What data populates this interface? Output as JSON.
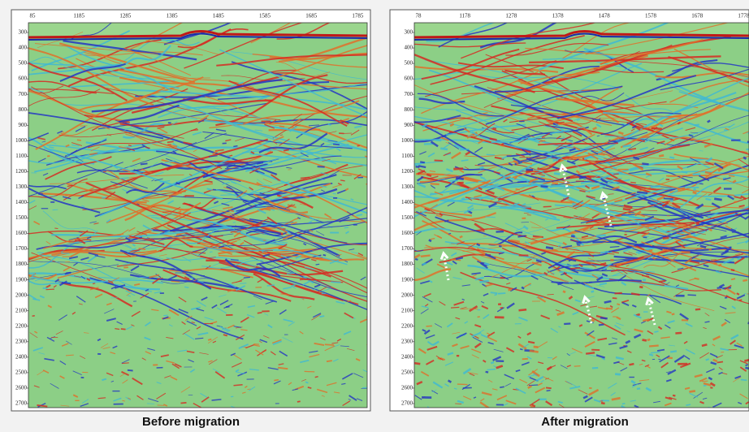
{
  "panels": [
    {
      "caption": "Before migration",
      "x_labels": [
        "85",
        "1185",
        "1285",
        "1385",
        "1485",
        "1585",
        "1685",
        "1785"
      ],
      "y_labels": [
        "300",
        "400",
        "500",
        "600",
        "700",
        "800",
        "900",
        "1000",
        "1100",
        "1200",
        "1300",
        "1400",
        "1500",
        "1600",
        "1700",
        "1800",
        "1900",
        "2000",
        "2100",
        "2200",
        "2300",
        "2400",
        "2500",
        "2600",
        "2700"
      ]
    },
    {
      "caption": "After migration",
      "x_labels": [
        "78",
        "1178",
        "1278",
        "1378",
        "1478",
        "1578",
        "1678",
        "1778"
      ],
      "y_labels": [
        "300",
        "400",
        "500",
        "600",
        "700",
        "800",
        "900",
        "1000",
        "1100",
        "1200",
        "1300",
        "1400",
        "1500",
        "1600",
        "1700",
        "1800",
        "1900",
        "2000",
        "2100",
        "2200",
        "2300",
        "2400",
        "2500",
        "2600",
        "2700"
      ]
    }
  ]
}
